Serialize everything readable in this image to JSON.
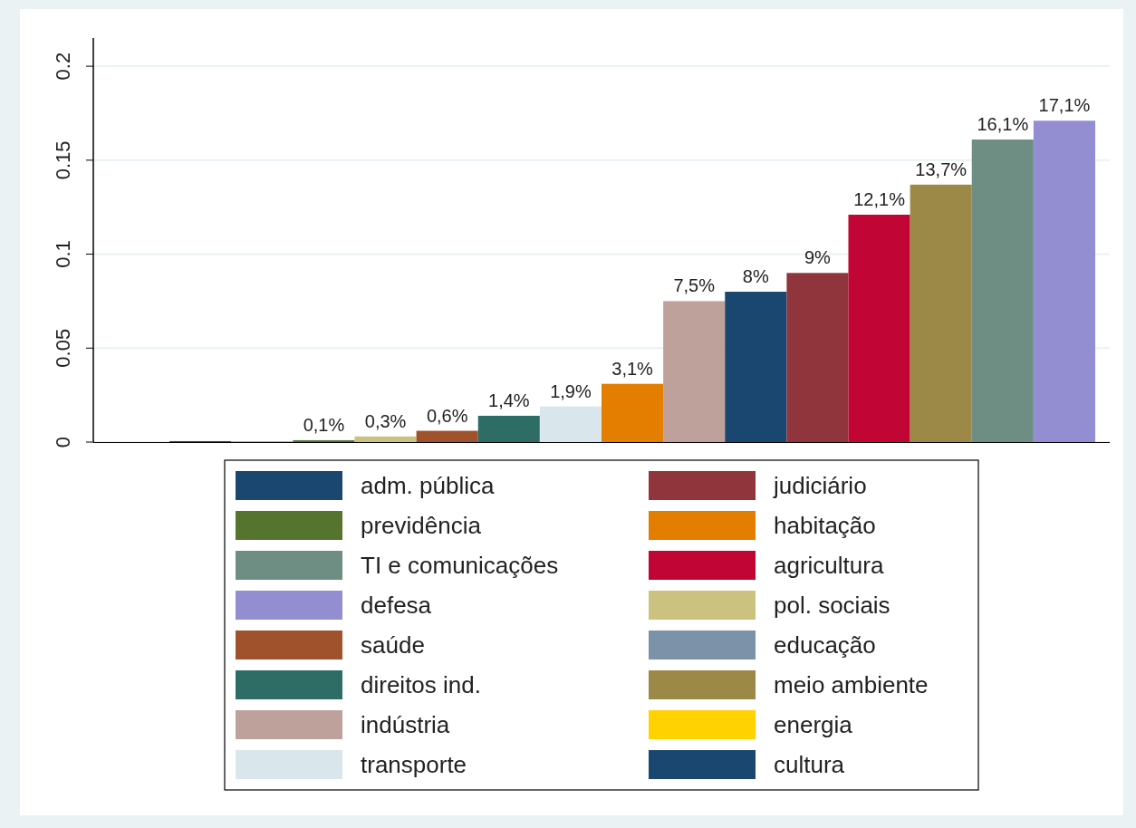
{
  "chart_data": {
    "type": "bar",
    "categories": [
      null,
      null,
      null,
      null,
      null,
      null,
      null,
      null,
      null,
      null,
      null,
      null,
      null,
      null,
      null,
      null
    ],
    "ylim": [
      0,
      0.215
    ],
    "yticks": [
      0,
      0.05,
      0.1,
      0.15,
      0.2
    ],
    "grid": "y",
    "legend": "bottom",
    "series": [
      {
        "name": "adm. pública",
        "color": "#1a476f",
        "values": [
          null,
          0.0005,
          null,
          null,
          null,
          null,
          null,
          null,
          null,
          null,
          null,
          null,
          null,
          null,
          null,
          null
        ],
        "value_labels": [
          null,
          null,
          null,
          null,
          null,
          null,
          null,
          null,
          null,
          null,
          null,
          null,
          null,
          null,
          null,
          null
        ]
      },
      {
        "name": "judiciário",
        "color": "#90353b",
        "values": [
          null,
          null,
          null,
          null,
          null,
          null,
          null,
          null,
          null,
          null,
          null,
          0.09,
          null,
          null,
          null,
          null
        ],
        "value_labels": [
          null,
          null,
          null,
          null,
          null,
          null,
          null,
          null,
          null,
          null,
          null,
          "9%",
          null,
          null,
          null,
          null
        ]
      },
      {
        "name": "previdência",
        "color": "#55752f",
        "values": [
          null,
          null,
          null,
          0.001,
          null,
          null,
          null,
          null,
          null,
          null,
          null,
          null,
          null,
          null,
          null,
          null
        ],
        "value_labels": [
          null,
          null,
          null,
          "0,1%",
          null,
          null,
          null,
          null,
          null,
          null,
          null,
          null,
          null,
          null,
          null,
          null
        ]
      },
      {
        "name": "habitação",
        "color": "#e37e00",
        "values": [
          null,
          null,
          null,
          null,
          null,
          null,
          null,
          null,
          0.031,
          null,
          null,
          null,
          null,
          null,
          null,
          null
        ],
        "value_labels": [
          null,
          null,
          null,
          null,
          null,
          null,
          null,
          null,
          "3,1%",
          null,
          null,
          null,
          null,
          null,
          null,
          null
        ]
      },
      {
        "name": "TI e comunicações",
        "color": "#6e8e84",
        "values": [
          null,
          null,
          null,
          null,
          null,
          null,
          null,
          null,
          null,
          null,
          null,
          null,
          null,
          null,
          0.161,
          null
        ],
        "value_labels": [
          null,
          null,
          null,
          null,
          null,
          null,
          null,
          null,
          null,
          null,
          null,
          null,
          null,
          null,
          "16,1%",
          null
        ]
      },
      {
        "name": "agricultura",
        "color": "#c10534",
        "values": [
          null,
          null,
          null,
          null,
          null,
          null,
          null,
          null,
          null,
          null,
          null,
          null,
          0.121,
          null,
          null,
          null
        ],
        "value_labels": [
          null,
          null,
          null,
          null,
          null,
          null,
          null,
          null,
          null,
          null,
          null,
          null,
          "12,1%",
          null,
          null,
          null
        ]
      },
      {
        "name": "defesa",
        "color": "#938dd2",
        "values": [
          null,
          null,
          null,
          null,
          null,
          null,
          null,
          null,
          null,
          null,
          null,
          null,
          null,
          null,
          null,
          0.171
        ],
        "value_labels": [
          null,
          null,
          null,
          null,
          null,
          null,
          null,
          null,
          null,
          null,
          null,
          null,
          null,
          null,
          null,
          "17,1%"
        ]
      },
      {
        "name": "pol. sociais",
        "color": "#cac27e",
        "values": [
          null,
          null,
          null,
          null,
          0.003,
          null,
          null,
          null,
          null,
          null,
          null,
          null,
          null,
          null,
          null,
          null
        ],
        "value_labels": [
          null,
          null,
          null,
          null,
          "0,3%",
          null,
          null,
          null,
          null,
          null,
          null,
          null,
          null,
          null,
          null,
          null
        ]
      },
      {
        "name": "saúde",
        "color": "#a0522d",
        "values": [
          null,
          null,
          null,
          null,
          null,
          0.006,
          null,
          null,
          null,
          null,
          null,
          null,
          null,
          null,
          null,
          null
        ],
        "value_labels": [
          null,
          null,
          null,
          null,
          null,
          "0,6%",
          null,
          null,
          null,
          null,
          null,
          null,
          null,
          null,
          null,
          null
        ]
      },
      {
        "name": "educação",
        "color": "#7b92a8",
        "values": [
          null,
          null,
          0.0003,
          null,
          null,
          null,
          null,
          null,
          null,
          null,
          null,
          null,
          null,
          null,
          null,
          null
        ],
        "value_labels": [
          null,
          null,
          null,
          null,
          null,
          null,
          null,
          null,
          null,
          null,
          null,
          null,
          null,
          null,
          null,
          null
        ]
      },
      {
        "name": "direitos ind.",
        "color": "#2d6d66",
        "values": [
          null,
          null,
          null,
          null,
          null,
          null,
          0.014,
          null,
          null,
          null,
          null,
          null,
          null,
          null,
          null,
          null
        ],
        "value_labels": [
          null,
          null,
          null,
          null,
          null,
          null,
          "1,4%",
          null,
          null,
          null,
          null,
          null,
          null,
          null,
          null,
          null
        ]
      },
      {
        "name": "meio ambiente",
        "color": "#9c8847",
        "values": [
          null,
          null,
          null,
          null,
          null,
          null,
          null,
          null,
          null,
          null,
          null,
          null,
          null,
          0.137,
          null,
          null
        ],
        "value_labels": [
          null,
          null,
          null,
          null,
          null,
          null,
          null,
          null,
          null,
          null,
          null,
          null,
          null,
          "13,7%",
          null,
          null
        ]
      },
      {
        "name": "indústria",
        "color": "#bfa19c",
        "values": [
          null,
          null,
          null,
          null,
          null,
          null,
          null,
          null,
          null,
          0.075,
          null,
          null,
          null,
          null,
          null,
          null
        ],
        "value_labels": [
          null,
          null,
          null,
          null,
          null,
          null,
          null,
          null,
          null,
          "7,5%",
          null,
          null,
          null,
          null,
          null,
          null
        ]
      },
      {
        "name": "energia",
        "color": "#ffd200",
        "values": [
          0,
          null,
          null,
          null,
          null,
          null,
          null,
          null,
          null,
          null,
          null,
          null,
          null,
          null,
          null,
          null
        ],
        "value_labels": [
          null,
          null,
          null,
          null,
          null,
          null,
          null,
          null,
          null,
          null,
          null,
          null,
          null,
          null,
          null,
          null
        ]
      },
      {
        "name": "transporte",
        "color": "#d9e6eb",
        "values": [
          null,
          null,
          null,
          null,
          null,
          null,
          null,
          0.019,
          null,
          null,
          null,
          null,
          null,
          null,
          null,
          null
        ],
        "value_labels": [
          null,
          null,
          null,
          null,
          null,
          null,
          null,
          "1,9%",
          null,
          null,
          null,
          null,
          null,
          null,
          null,
          null
        ]
      },
      {
        "name": "cultura",
        "color": "#1a476f",
        "values": [
          null,
          null,
          null,
          null,
          null,
          null,
          null,
          null,
          null,
          null,
          0.08,
          null,
          null,
          null,
          null,
          null
        ],
        "value_labels": [
          null,
          null,
          null,
          null,
          null,
          null,
          null,
          null,
          null,
          null,
          "8%",
          null,
          null,
          null,
          null,
          null
        ]
      }
    ]
  }
}
